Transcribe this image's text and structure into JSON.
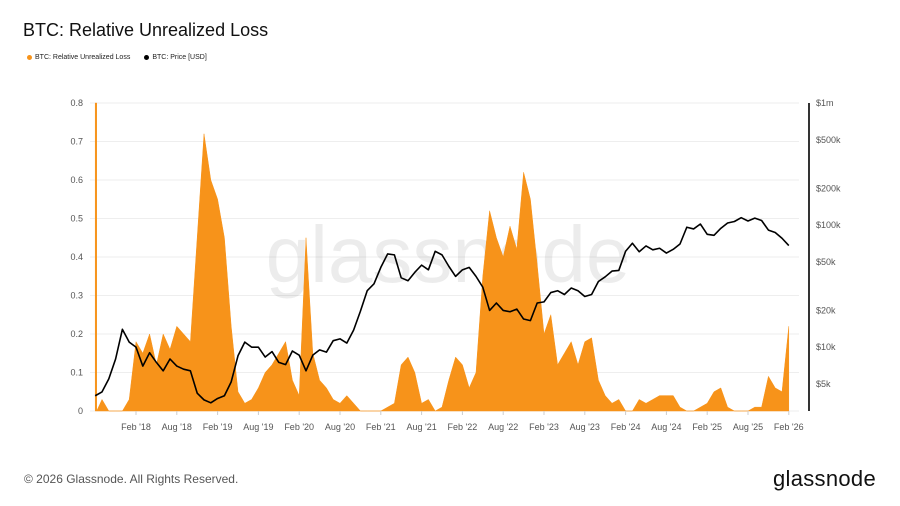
{
  "header": {
    "title": "BTC: Relative Unrealized Loss"
  },
  "footer": {
    "copyright": "© 2026 Glassnode. All Rights Reserved.",
    "logo": "glassnode"
  },
  "watermark": "glassnode",
  "colors": {
    "loss": "#f7931a",
    "price": "#000000",
    "grid": "#eeeeee"
  },
  "chart_data": {
    "type": "area",
    "title": "BTC: Relative Unrealized Loss",
    "legend_placement": "top-left",
    "grid": true,
    "x_ticks": [
      "Feb '18",
      "Aug '18",
      "Feb '19",
      "Aug '19",
      "Feb '20",
      "Aug '20",
      "Feb '21",
      "Aug '21",
      "Feb '22",
      "Aug '22",
      "Feb '23",
      "Aug '23",
      "Feb '24",
      "Aug '24",
      "Feb '25",
      "Aug '25",
      "Feb '26"
    ],
    "y_left": {
      "ylim": [
        0,
        0.8
      ],
      "ticks": [
        "0",
        "0.1",
        "0.2",
        "0.3",
        "0.4",
        "0.5",
        "0.6",
        "0.7",
        "0.8"
      ]
    },
    "y_right": {
      "scale": "log",
      "ylim": [
        3000,
        1000000
      ],
      "ticks": [
        {
          "label": "$5k",
          "value": 5000
        },
        {
          "label": "$10k",
          "value": 10000
        },
        {
          "label": "$20k",
          "value": 20000
        },
        {
          "label": "$50k",
          "value": 50000
        },
        {
          "label": "$100k",
          "value": 100000
        },
        {
          "label": "$200k",
          "value": 200000
        },
        {
          "label": "$500k",
          "value": 500000
        },
        {
          "label": "$1m",
          "value": 1000000
        }
      ]
    },
    "x": [
      "2017-08",
      "2017-09",
      "2017-10",
      "2017-11",
      "2017-12",
      "2018-01",
      "2018-02",
      "2018-03",
      "2018-04",
      "2018-05",
      "2018-06",
      "2018-07",
      "2018-08",
      "2018-09",
      "2018-10",
      "2018-11",
      "2018-12",
      "2019-01",
      "2019-02",
      "2019-03",
      "2019-04",
      "2019-05",
      "2019-06",
      "2019-07",
      "2019-08",
      "2019-09",
      "2019-10",
      "2019-11",
      "2019-12",
      "2020-01",
      "2020-02",
      "2020-03",
      "2020-04",
      "2020-05",
      "2020-06",
      "2020-07",
      "2020-08",
      "2020-09",
      "2020-10",
      "2020-11",
      "2020-12",
      "2021-01",
      "2021-02",
      "2021-03",
      "2021-04",
      "2021-05",
      "2021-06",
      "2021-07",
      "2021-08",
      "2021-09",
      "2021-10",
      "2021-11",
      "2021-12",
      "2022-01",
      "2022-02",
      "2022-03",
      "2022-04",
      "2022-05",
      "2022-06",
      "2022-07",
      "2022-08",
      "2022-09",
      "2022-10",
      "2022-11",
      "2022-12",
      "2023-01",
      "2023-02",
      "2023-03",
      "2023-04",
      "2023-05",
      "2023-06",
      "2023-07",
      "2023-08",
      "2023-09",
      "2023-10",
      "2023-11",
      "2023-12",
      "2024-01",
      "2024-02",
      "2024-03",
      "2024-04",
      "2024-05",
      "2024-06",
      "2024-07",
      "2024-08",
      "2024-09",
      "2024-10",
      "2024-11",
      "2024-12",
      "2025-01",
      "2025-02",
      "2025-03",
      "2025-04",
      "2025-05",
      "2025-06",
      "2025-07",
      "2025-08",
      "2025-09",
      "2025-10",
      "2025-11",
      "2025-12",
      "2026-01",
      "2026-02"
    ],
    "series": [
      {
        "name": "BTC: Relative Unrealized Loss",
        "axis": "left",
        "color": "#f7931a",
        "values": [
          0.8,
          0.03,
          0,
          0,
          0,
          0.03,
          0.18,
          0.15,
          0.2,
          0.12,
          0.2,
          0.16,
          0.22,
          0.2,
          0.18,
          0.45,
          0.72,
          0.6,
          0.55,
          0.45,
          0.22,
          0.05,
          0.02,
          0.03,
          0.06,
          0.1,
          0.12,
          0.15,
          0.18,
          0.08,
          0.04,
          0.45,
          0.15,
          0.08,
          0.06,
          0.03,
          0.02,
          0.04,
          0.02,
          0,
          0,
          0,
          0,
          0.01,
          0.02,
          0.12,
          0.14,
          0.1,
          0.02,
          0.03,
          0,
          0.01,
          0.08,
          0.14,
          0.12,
          0.06,
          0.1,
          0.35,
          0.52,
          0.45,
          0.4,
          0.48,
          0.42,
          0.62,
          0.55,
          0.38,
          0.2,
          0.25,
          0.12,
          0.15,
          0.18,
          0.12,
          0.18,
          0.19,
          0.08,
          0.04,
          0.02,
          0.03,
          0,
          0,
          0.03,
          0.02,
          0.03,
          0.04,
          0.04,
          0.04,
          0.01,
          0,
          0,
          0.01,
          0.02,
          0.05,
          0.06,
          0.01,
          0,
          0,
          0,
          0.01,
          0.01,
          0.09,
          0.06,
          0.05,
          0.22
        ]
      },
      {
        "name": "BTC: Price [USD]",
        "axis": "right",
        "color": "#000000",
        "values": [
          4000,
          4300,
          5500,
          8000,
          14000,
          11000,
          10000,
          7000,
          9000,
          7500,
          6400,
          8000,
          7000,
          6600,
          6400,
          4200,
          3700,
          3500,
          3800,
          4000,
          5200,
          8500,
          11000,
          10000,
          10000,
          8300,
          9200,
          7500,
          7200,
          9300,
          8600,
          6400,
          8600,
          9500,
          9100,
          11300,
          11700,
          10800,
          13800,
          19700,
          29000,
          33000,
          45000,
          58000,
          57000,
          37000,
          35000,
          41000,
          47000,
          43000,
          61000,
          57000,
          46000,
          38000,
          43000,
          45000,
          38000,
          31000,
          20000,
          23000,
          20000,
          19500,
          20500,
          17000,
          16500,
          23000,
          23500,
          28000,
          29000,
          27000,
          30500,
          29000,
          26000,
          27000,
          34500,
          37700,
          42000,
          42500,
          61000,
          71000,
          60500,
          67500,
          62700,
          64600,
          59000,
          63300,
          70000,
          96000,
          93000,
          102000,
          84000,
          82500,
          94000,
          104000,
          107000,
          115000,
          108000,
          114000,
          109000,
          91000,
          87000,
          78000,
          68000
        ]
      }
    ]
  }
}
